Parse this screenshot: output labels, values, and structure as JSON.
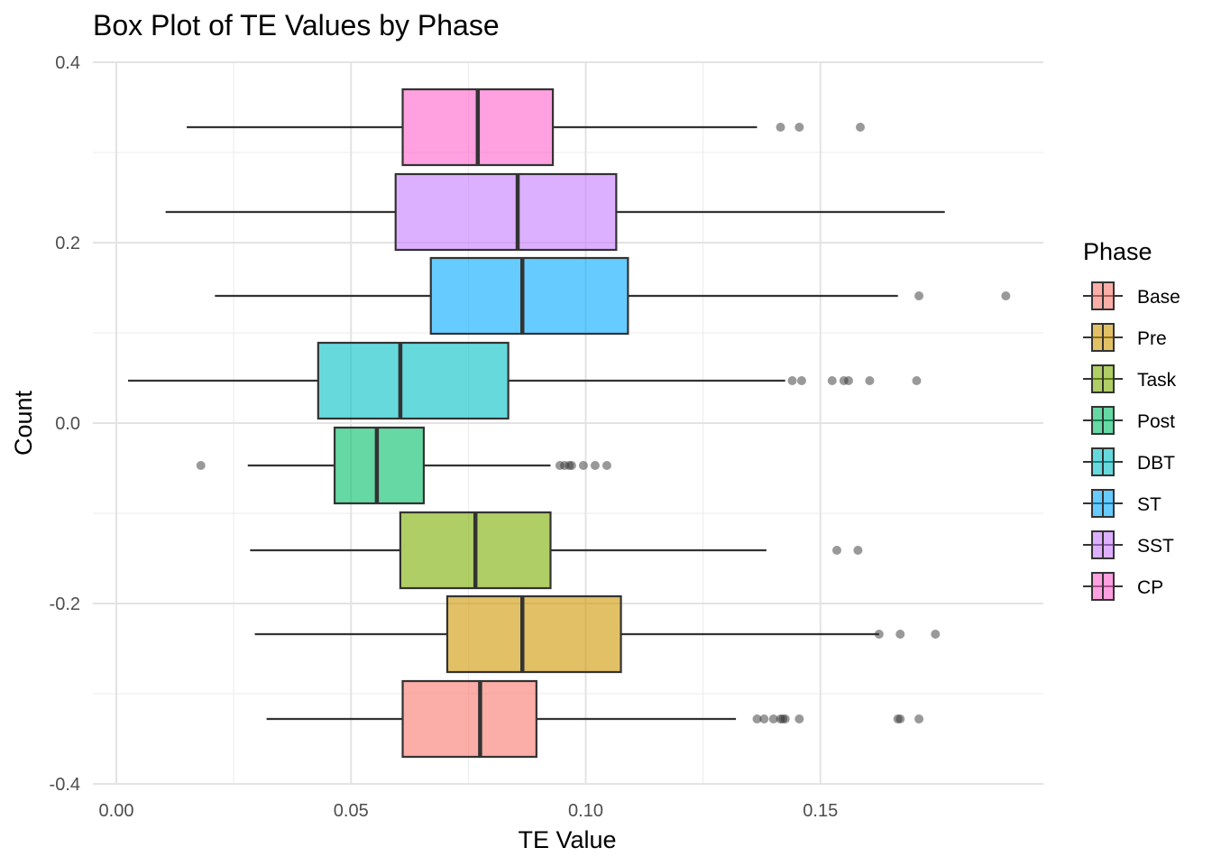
{
  "chart_data": {
    "type": "boxplot",
    "orientation": "horizontal",
    "title": "Box Plot of TE Values by Phase",
    "xlabel": "TE Value",
    "ylabel": "Count",
    "xlim": [
      -0.005,
      0.1975
    ],
    "ylim": [
      -0.4,
      0.4
    ],
    "x_ticks": [
      {
        "value": 0.0,
        "label": "0.00"
      },
      {
        "value": 0.05,
        "label": "0.05"
      },
      {
        "value": 0.1,
        "label": "0.10"
      },
      {
        "value": 0.15,
        "label": "0.15"
      }
    ],
    "y_ticks": [
      {
        "value": 0.4,
        "label": "0.4"
      },
      {
        "value": 0.2,
        "label": "0.2"
      },
      {
        "value": 0.0,
        "label": "0.0"
      },
      {
        "value": -0.2,
        "label": "-0.2"
      },
      {
        "value": -0.4,
        "label": "-0.4"
      }
    ],
    "legend_title": "Phase",
    "legend_position": "right",
    "grid": true,
    "series": [
      {
        "name": "Base",
        "color": "#F8766D",
        "y": -0.328,
        "whisker_low": 0.032,
        "q1": 0.061,
        "median": 0.0775,
        "q3": 0.0895,
        "whisker_high": 0.132,
        "outliers": [
          0.1365,
          0.138,
          0.14,
          0.1415,
          0.142,
          0.1425,
          0.1455,
          0.1665,
          0.167,
          0.171
        ]
      },
      {
        "name": "Pre",
        "color": "#CD9600",
        "y": -0.234,
        "whisker_low": 0.0295,
        "q1": 0.0705,
        "median": 0.0865,
        "q3": 0.1075,
        "whisker_high": 0.1625,
        "outliers": [
          0.1625,
          0.167,
          0.1745
        ]
      },
      {
        "name": "Task",
        "color": "#7CAE00",
        "y": -0.141,
        "whisker_low": 0.0285,
        "q1": 0.0605,
        "median": 0.0765,
        "q3": 0.0925,
        "whisker_high": 0.1385,
        "outliers": [
          0.1535,
          0.158
        ]
      },
      {
        "name": "Post",
        "color": "#00BE67",
        "y": -0.047,
        "whisker_low": 0.028,
        "q1": 0.0465,
        "median": 0.0555,
        "q3": 0.0655,
        "whisker_high": 0.0925,
        "outliers": [
          0.018,
          0.0945,
          0.0955,
          0.0965,
          0.097,
          0.0995,
          0.102,
          0.1045
        ]
      },
      {
        "name": "DBT",
        "color": "#00BFC4",
        "y": 0.047,
        "whisker_low": 0.0025,
        "q1": 0.043,
        "median": 0.0605,
        "q3": 0.0835,
        "whisker_high": 0.1425,
        "outliers": [
          0.144,
          0.146,
          0.1525,
          0.155,
          0.156,
          0.1605,
          0.1705
        ]
      },
      {
        "name": "ST",
        "color": "#00A9FF",
        "y": 0.141,
        "whisker_low": 0.021,
        "q1": 0.067,
        "median": 0.0865,
        "q3": 0.109,
        "whisker_high": 0.1665,
        "outliers": [
          0.171,
          0.1895
        ]
      },
      {
        "name": "SST",
        "color": "#C77CFF",
        "y": 0.234,
        "whisker_low": 0.0105,
        "q1": 0.0595,
        "median": 0.0855,
        "q3": 0.1065,
        "whisker_high": 0.1765,
        "outliers": []
      },
      {
        "name": "CP",
        "color": "#FF61CC",
        "y": 0.328,
        "whisker_low": 0.015,
        "q1": 0.061,
        "median": 0.077,
        "q3": 0.093,
        "whisker_high": 0.1365,
        "outliers": [
          0.1415,
          0.1455,
          0.1585
        ]
      }
    ]
  }
}
